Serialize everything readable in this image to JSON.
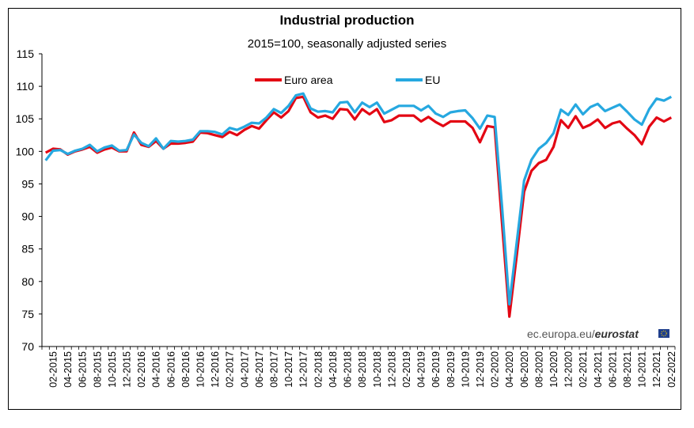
{
  "chart_data": {
    "type": "line",
    "title": "Industrial production",
    "subtitle": "2015=100, seasonally adjusted series",
    "ylim": [
      70,
      115
    ],
    "yticks": [
      "70",
      "75",
      "80",
      "85",
      "90",
      "95",
      "100",
      "105",
      "110",
      "115"
    ],
    "xtick_labels": [
      "02-2015",
      "04-2015",
      "06-2015",
      "08-2015",
      "10-2015",
      "12-2015",
      "02-2016",
      "04-2016",
      "06-2016",
      "08-2016",
      "10-2016",
      "12-2016",
      "02-2017",
      "04-2017",
      "06-2017",
      "08-2017",
      "10-2017",
      "12-2017",
      "02-2018",
      "04-2018",
      "06-2018",
      "08-2018",
      "10-2018",
      "12-2018",
      "02-2019",
      "04-2019",
      "06-2019",
      "08-2019",
      "10-2019",
      "12-2019",
      "02-2020",
      "04-2020",
      "06-2020",
      "08-2020",
      "10-2020",
      "12-2020",
      "02-2021",
      "04-2021",
      "06-2021",
      "08-2021",
      "10-2021",
      "12-2021",
      "02-2022"
    ],
    "x_start": "01-2015",
    "series": [
      {
        "name": "Euro area",
        "color": "#e30613",
        "values": [
          99.8,
          100.4,
          100.3,
          99.5,
          100.0,
          100.3,
          100.7,
          99.8,
          100.3,
          100.6,
          100.0,
          100.0,
          102.9,
          101.0,
          100.7,
          101.6,
          100.4,
          101.2,
          101.2,
          101.3,
          101.5,
          102.9,
          102.8,
          102.5,
          102.2,
          103.0,
          102.5,
          103.3,
          103.9,
          103.5,
          104.8,
          106.0,
          105.2,
          106.2,
          108.2,
          108.4,
          106.0,
          105.2,
          105.5,
          105.0,
          106.5,
          106.4,
          104.9,
          106.5,
          105.7,
          106.5,
          104.5,
          104.8,
          105.5,
          105.5,
          105.5,
          104.6,
          105.3,
          104.5,
          103.9,
          104.6,
          104.6,
          104.6,
          103.6,
          101.4,
          103.9,
          103.7,
          89.0,
          74.6,
          84.0,
          93.8,
          97.0,
          98.2,
          98.7,
          100.7,
          104.8,
          103.6,
          105.4,
          103.6,
          104.1,
          104.9,
          103.6,
          104.3,
          104.6,
          103.5,
          102.5,
          101.1,
          103.8,
          105.2,
          104.6,
          105.2
        ]
      },
      {
        "name": "EU",
        "color": "#26a8e0",
        "values": [
          98.6,
          100.1,
          100.2,
          99.6,
          100.1,
          100.4,
          101.0,
          100.0,
          100.6,
          100.9,
          100.1,
          100.2,
          102.6,
          101.3,
          100.8,
          102.0,
          100.4,
          101.6,
          101.5,
          101.6,
          101.8,
          103.1,
          103.1,
          103.0,
          102.6,
          103.6,
          103.3,
          103.8,
          104.4,
          104.3,
          105.2,
          106.5,
          105.9,
          107.0,
          108.6,
          108.9,
          106.6,
          106.1,
          106.2,
          106.0,
          107.5,
          107.6,
          106.0,
          107.5,
          106.8,
          107.5,
          105.8,
          106.4,
          107.0,
          107.0,
          107.0,
          106.3,
          107.0,
          105.8,
          105.3,
          106.0,
          106.2,
          106.3,
          105.1,
          103.5,
          105.5,
          105.3,
          91.5,
          76.5,
          86.0,
          95.5,
          98.7,
          100.4,
          101.3,
          102.8,
          106.4,
          105.6,
          107.2,
          105.7,
          106.8,
          107.3,
          106.2,
          106.7,
          107.2,
          106.1,
          104.9,
          104.1,
          106.5,
          108.1,
          107.8,
          108.4
        ]
      }
    ],
    "legend": [
      "Euro area",
      "EU"
    ],
    "source": {
      "prefix": "ec.europa.eu/",
      "brand": "eurostat"
    }
  }
}
